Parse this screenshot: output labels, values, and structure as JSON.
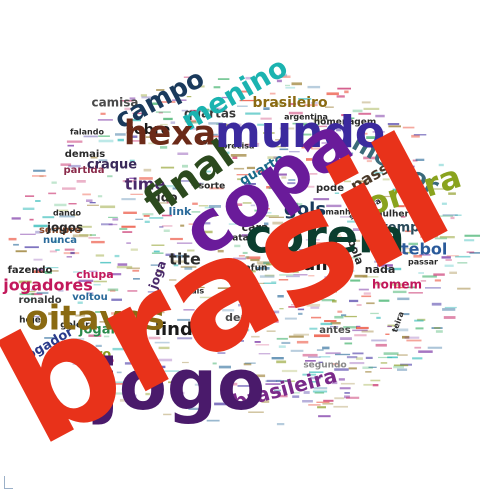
{
  "cloud": {
    "words": [
      {
        "text": "brasil",
        "color": "#e8321a"
      },
      {
        "text": "copa",
        "color": "#6a1b9a"
      },
      {
        "text": "jogo",
        "color": "#4a1a6b"
      },
      {
        "text": "coreia",
        "color": "#0b3d2e"
      },
      {
        "text": "mundo",
        "color": "#3b2a9e"
      },
      {
        "text": "oitavas",
        "color": "#8a6a12"
      },
      {
        "text": "final",
        "color": "#2c4a1e"
      },
      {
        "text": "hexa",
        "color": "#6b2a18"
      },
      {
        "text": "contra",
        "color": "#8aa31e"
      },
      {
        "text": "menino",
        "color": "#1bb3b0"
      },
      {
        "text": "campo",
        "color": "#1a3a5c"
      },
      {
        "text": "melhor",
        "color": "#3a6a7a"
      },
      {
        "text": "brasileira",
        "color": "#7a2a8a"
      },
      {
        "text": "lindo",
        "color": "#1a1a1a"
      },
      {
        "text": "rumo",
        "color": "#1a1a1a"
      },
      {
        "text": "gols",
        "color": "#1a3a5c"
      },
      {
        "text": "tite",
        "color": "#2c2c2c"
      },
      {
        "text": "time",
        "color": "#4a2a6a"
      },
      {
        "text": "futebol",
        "color": "#2a5a9a"
      },
      {
        "text": "jogadores",
        "color": "#c2185b"
      },
      {
        "text": "primeiro",
        "color": "#8a9a1e"
      },
      {
        "text": "jogar",
        "color": "#2a8a4a"
      },
      {
        "text": "jogador",
        "color": "#2a3a8a"
      },
      {
        "text": "passo",
        "color": "#4a3a2a"
      },
      {
        "text": "quarto",
        "color": "#1a6a8a"
      },
      {
        "text": "tempo",
        "color": "#2a4a5a"
      },
      {
        "text": "homem",
        "color": "#c2185b"
      },
      {
        "text": "brasileiro",
        "color": "#8a6a12"
      },
      {
        "text": "craque",
        "color": "#3a2a5a"
      },
      {
        "text": "sobre",
        "color": "#1a1a1a"
      },
      {
        "text": "camisa",
        "color": "#4a4a4a"
      },
      {
        "text": "quartas",
        "color": "#3a3a3a"
      },
      {
        "text": "tudo",
        "color": "#2a2a2a"
      },
      {
        "text": "link",
        "color": "#2a6a9a"
      },
      {
        "text": "deus",
        "color": "#4a4a4a"
      },
      {
        "text": "novo",
        "color": "#c2185b"
      },
      {
        "text": "falta",
        "color": "#2aa85a"
      },
      {
        "text": "bola",
        "color": "#2a2a2a"
      },
      {
        "text": "nada",
        "color": "#2a2a2a"
      },
      {
        "text": "joga",
        "color": "#4a2a6a"
      },
      {
        "text": "cara",
        "color": "#2a2a2a"
      },
      {
        "text": "pode",
        "color": "#2a2a2a"
      },
      {
        "text": "antes",
        "color": "#4a4a4a"
      },
      {
        "text": "segundo",
        "color": "#8a8a8a"
      },
      {
        "text": "jogos",
        "color": "#2a2a2a"
      },
      {
        "text": "ronaldo",
        "color": "#3a3a3a"
      },
      {
        "text": "fazendo",
        "color": "#2a2a2a"
      },
      {
        "text": "chupa",
        "color": "#c2185b"
      },
      {
        "text": "voltou",
        "color": "#2a6a9a"
      },
      {
        "text": "sempre",
        "color": "#8a4a2a"
      },
      {
        "text": "nunca",
        "color": "#2a6a9a"
      },
      {
        "text": "goleiro",
        "color": "#2a2a2a"
      },
      {
        "text": "hoje",
        "color": "#2a2a2a"
      },
      {
        "text": "dando",
        "color": "#2a2a2a"
      },
      {
        "text": "demais",
        "color": "#2a2a2a"
      },
      {
        "text": "partida",
        "color": "#8a2a4a"
      },
      {
        "text": "falando",
        "color": "#2a2a2a"
      },
      {
        "text": "catar",
        "color": "#2a2a2a"
      },
      {
        "text": "sorte",
        "color": "#2a2a2a"
      },
      {
        "text": "seguida",
        "color": "#2a2a2a"
      },
      {
        "text": "passar",
        "color": "#2a2a2a"
      },
      {
        "text": "mulher",
        "color": "#2a2a2a"
      },
      {
        "text": "homenagem",
        "color": "#2a2a2a"
      },
      {
        "text": "argentina",
        "color": "#2a2a2a"
      },
      {
        "text": "alemanha",
        "color": "#2a2a2a"
      },
      {
        "text": "voltar",
        "color": "#2a2a2a"
      },
      {
        "text": "precisa",
        "color": "#2a2a2a"
      },
      {
        "text": "afun",
        "color": "#2a2a2a"
      },
      {
        "text": "reais",
        "color": "#2a2a2a"
      },
      {
        "text": "teira",
        "color": "#2a2a2a"
      }
    ]
  }
}
